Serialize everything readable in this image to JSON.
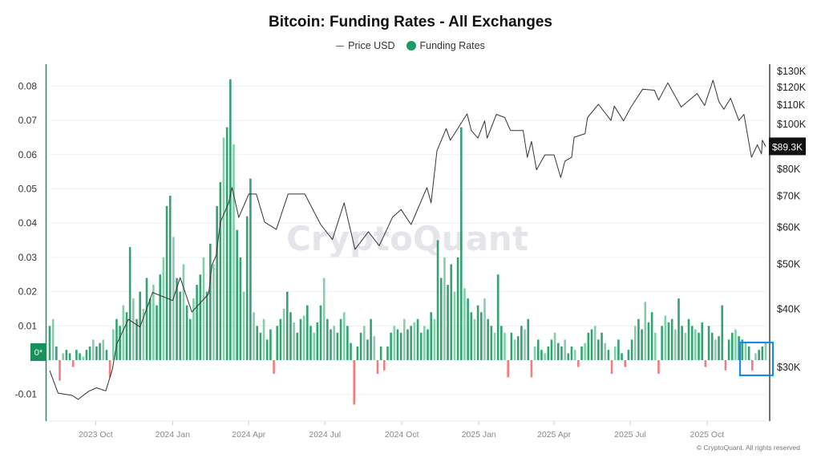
{
  "chart_data": {
    "type": "bar+line",
    "title": "Bitcoin: Funding Rates - All Exchanges",
    "legend": [
      {
        "name": "Price USD",
        "color": "#555555",
        "marker": "line"
      },
      {
        "name": "Funding Rates",
        "color": "#1a9c62",
        "marker": "dot"
      }
    ],
    "legend_placement": "top-center",
    "start_date": "2023-08-07",
    "total_days": 856,
    "x_ticks": [
      {
        "label": "2023 Oct",
        "day": 55
      },
      {
        "label": "2024 Jan",
        "day": 147
      },
      {
        "label": "2024 Apr",
        "day": 238
      },
      {
        "label": "2024 Jul",
        "day": 329
      },
      {
        "label": "2024 Oct",
        "day": 421
      },
      {
        "label": "2025 Jan",
        "day": 513
      },
      {
        "label": "2025 Apr",
        "day": 603
      },
      {
        "label": "2025 Jul",
        "day": 694
      },
      {
        "label": "2025 Oct",
        "day": 786
      }
    ],
    "left_axis": {
      "label": "Funding Rates",
      "ylim": [
        -0.0175,
        0.0805
      ],
      "ticks": [
        {
          "label": "0.08",
          "value": 0.08
        },
        {
          "label": "0.07",
          "value": 0.07
        },
        {
          "label": "0.06",
          "value": 0.06
        },
        {
          "label": "0.05",
          "value": 0.05
        },
        {
          "label": "0.04",
          "value": 0.04
        },
        {
          "label": "0.03",
          "value": 0.03
        },
        {
          "label": "0.02",
          "value": 0.02
        },
        {
          "label": "0.01",
          "value": 0.01
        },
        {
          "label": "-0.01",
          "value": -0.01
        }
      ],
      "zero_badge": "0*"
    },
    "right_axis": {
      "label": "Price USD",
      "scale": "log",
      "ticks": [
        {
          "label": "$130K",
          "value": 130000
        },
        {
          "label": "$120K",
          "value": 120000
        },
        {
          "label": "$110K",
          "value": 110000
        },
        {
          "label": "$100K",
          "value": 100000
        },
        {
          "label": "$80K",
          "value": 80000
        },
        {
          "label": "$70K",
          "value": 70000
        },
        {
          "label": "$60K",
          "value": 60000
        },
        {
          "label": "$50K",
          "value": 50000
        },
        {
          "label": "$40K",
          "value": 40000
        },
        {
          "label": "$30K",
          "value": 30000
        }
      ],
      "current_badge": "$89.3K",
      "current_value": 89300
    },
    "grid": true,
    "funding_interval_days": 4,
    "funding_rates": [
      0.01,
      0.012,
      0.004,
      -0.006,
      0.002,
      0.003,
      0.002,
      -0.002,
      0.003,
      0.002,
      0.001,
      0.003,
      0.004,
      0.006,
      0.004,
      0.005,
      0.006,
      0.003,
      -0.005,
      0.009,
      0.012,
      0.01,
      0.016,
      0.014,
      0.033,
      0.018,
      0.012,
      0.02,
      0.015,
      0.024,
      0.018,
      0.022,
      0.016,
      0.025,
      0.03,
      0.045,
      0.048,
      0.036,
      0.024,
      0.02,
      0.028,
      0.016,
      0.012,
      0.018,
      0.022,
      0.025,
      0.03,
      0.02,
      0.034,
      0.028,
      0.045,
      0.052,
      0.065,
      0.068,
      0.082,
      0.063,
      0.038,
      0.03,
      0.02,
      0.042,
      0.053,
      0.014,
      0.01,
      0.008,
      0.012,
      0.006,
      0.009,
      -0.004,
      0.01,
      0.012,
      0.015,
      0.02,
      0.014,
      0.011,
      0.008,
      0.012,
      0.013,
      0.016,
      0.01,
      0.008,
      0.011,
      0.016,
      0.024,
      0.012,
      0.009,
      0.01,
      0.008,
      0.012,
      0.014,
      0.01,
      0.005,
      -0.013,
      0.004,
      0.008,
      0.01,
      0.006,
      0.012,
      0.007,
      -0.004,
      0.004,
      -0.003,
      0.004,
      0.008,
      0.01,
      0.009,
      0.008,
      0.012,
      0.009,
      0.01,
      0.011,
      0.012,
      0.008,
      0.01,
      0.009,
      0.014,
      0.012,
      0.035,
      0.024,
      0.03,
      0.022,
      0.028,
      0.02,
      0.03,
      0.068,
      0.021,
      0.018,
      0.014,
      0.012,
      0.016,
      0.014,
      0.018,
      0.012,
      0.01,
      0.008,
      0.025,
      0.01,
      0.008,
      -0.005,
      0.008,
      0.006,
      0.007,
      0.01,
      0.009,
      0.012,
      -0.005,
      0.004,
      0.006,
      0.003,
      0.002,
      0.004,
      0.006,
      0.008,
      0.005,
      0.004,
      0.006,
      0.002,
      0.004,
      0.003,
      -0.002,
      0.004,
      0.005,
      0.008,
      0.009,
      0.01,
      0.006,
      0.008,
      0.005,
      0.003,
      -0.004,
      0.004,
      0.006,
      0.002,
      -0.002,
      0.003,
      0.006,
      0.01,
      0.012,
      0.009,
      0.017,
      0.011,
      0.014,
      0.008,
      -0.004,
      0.01,
      0.013,
      0.011,
      0.012,
      0.009,
      0.018,
      0.01,
      0.008,
      0.012,
      0.01,
      0.009,
      0.008,
      0.011,
      -0.002,
      0.01,
      0.008,
      0.006,
      0.007,
      0.016,
      -0.003,
      0.006,
      0.008,
      0.009,
      0.007,
      0.006,
      0.005,
      0.004,
      -0.003,
      0.002,
      0.003,
      0.004,
      0.005
    ],
    "price_usd": [
      [
        0,
        29400
      ],
      [
        10,
        26300
      ],
      [
        27,
        26000
      ],
      [
        34,
        25500
      ],
      [
        46,
        26500
      ],
      [
        56,
        27000
      ],
      [
        67,
        26600
      ],
      [
        75,
        29600
      ],
      [
        80,
        33500
      ],
      [
        94,
        37900
      ],
      [
        108,
        36500
      ],
      [
        123,
        43300
      ],
      [
        147,
        41600
      ],
      [
        156,
        46600
      ],
      [
        170,
        39300
      ],
      [
        190,
        43000
      ],
      [
        194,
        49600
      ],
      [
        199,
        52000
      ],
      [
        204,
        61300
      ],
      [
        214,
        67500
      ],
      [
        218,
        72800
      ],
      [
        226,
        62800
      ],
      [
        238,
        70500
      ],
      [
        247,
        70500
      ],
      [
        257,
        61300
      ],
      [
        271,
        59200
      ],
      [
        285,
        70500
      ],
      [
        305,
        70500
      ],
      [
        324,
        60600
      ],
      [
        338,
        56300
      ],
      [
        352,
        67500
      ],
      [
        365,
        53600
      ],
      [
        381,
        58500
      ],
      [
        394,
        54600
      ],
      [
        410,
        62900
      ],
      [
        420,
        65300
      ],
      [
        432,
        60600
      ],
      [
        451,
        72800
      ],
      [
        456,
        67500
      ],
      [
        463,
        87400
      ],
      [
        474,
        97500
      ],
      [
        479,
        92000
      ],
      [
        499,
        104900
      ],
      [
        504,
        96600
      ],
      [
        512,
        93000
      ],
      [
        520,
        101300
      ],
      [
        523,
        93000
      ],
      [
        534,
        104600
      ],
      [
        544,
        103000
      ],
      [
        551,
        96600
      ],
      [
        566,
        96600
      ],
      [
        571,
        84600
      ],
      [
        576,
        91500
      ],
      [
        582,
        79500
      ],
      [
        592,
        85600
      ],
      [
        603,
        85600
      ],
      [
        611,
        76500
      ],
      [
        616,
        83000
      ],
      [
        624,
        84600
      ],
      [
        627,
        93400
      ],
      [
        640,
        95100
      ],
      [
        643,
        103000
      ],
      [
        656,
        110000
      ],
      [
        671,
        101500
      ],
      [
        675,
        109000
      ],
      [
        686,
        101300
      ],
      [
        695,
        108500
      ],
      [
        709,
        118500
      ],
      [
        723,
        117900
      ],
      [
        728,
        112300
      ],
      [
        739,
        122300
      ],
      [
        755,
        108500
      ],
      [
        774,
        116000
      ],
      [
        783,
        109300
      ],
      [
        793,
        123900
      ],
      [
        800,
        111500
      ],
      [
        806,
        107300
      ],
      [
        814,
        113300
      ],
      [
        824,
        101500
      ],
      [
        830,
        104600
      ],
      [
        839,
        84600
      ],
      [
        846,
        90000
      ],
      [
        851,
        86000
      ],
      [
        852,
        92000
      ],
      [
        856,
        89300
      ]
    ]
  },
  "watermark": "CryptoQuant",
  "copyright": "© CryptoQuant. All rights reserved",
  "colors": {
    "bar_dark": "#12925a",
    "bar_light": "#6cc79b",
    "bar_negative": "#f07c7c",
    "price_line": "#333333",
    "highlight": "#1e88e5",
    "zero_badge": "#17905a"
  }
}
